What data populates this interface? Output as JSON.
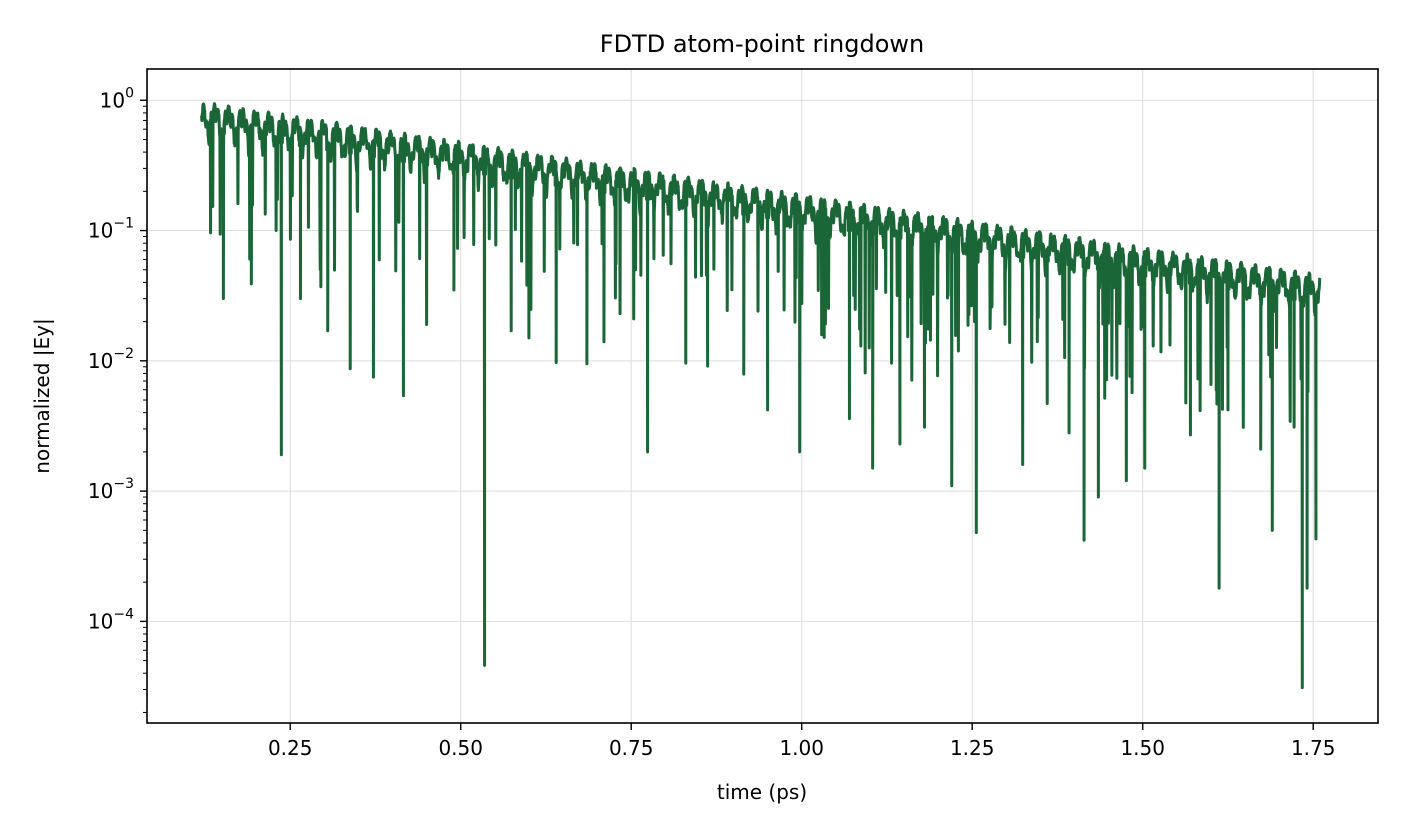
{
  "chart_data": {
    "type": "line",
    "title": "FDTD atom-point ringdown",
    "xlabel": "time (ps)",
    "ylabel": "normalized |Ey|",
    "xlim": [
      0.04,
      1.845
    ],
    "ylim_log10": [
      -4.78,
      0.24
    ],
    "yscale": "log",
    "grid": true,
    "x_ticks": [
      0.25,
      0.5,
      0.75,
      1.0,
      1.25,
      1.5,
      1.75
    ],
    "x_tick_labels": [
      "0.25",
      "0.50",
      "0.75",
      "1.00",
      "1.25",
      "1.50",
      "1.75"
    ],
    "y_ticks": [
      {
        "exp": 0,
        "base": "10",
        "sup": "0"
      },
      {
        "exp": -1,
        "base": "10",
        "sup": "−1"
      },
      {
        "exp": -2,
        "base": "10",
        "sup": "−2"
      },
      {
        "exp": -3,
        "base": "10",
        "sup": "−3"
      },
      {
        "exp": -4,
        "base": "10",
        "sup": "−4"
      }
    ],
    "line_color": "#1a6637",
    "series": [
      {
        "x_range": [
          0.12,
          1.76
        ],
        "envelope_start": 0.98,
        "envelope_end": 0.046,
        "deep_dips": [
          [
            0.152,
            0.03
          ],
          [
            0.193,
            0.039
          ],
          [
            0.237,
            0.0019
          ],
          [
            0.265,
            0.03
          ],
          [
            0.305,
            0.017
          ],
          [
            0.338,
            0.0087
          ],
          [
            0.372,
            0.0075
          ],
          [
            0.416,
            0.0054
          ],
          [
            0.45,
            0.019
          ],
          [
            0.49,
            0.035
          ],
          [
            0.535,
            4.6e-05
          ],
          [
            0.574,
            0.017
          ],
          [
            0.6,
            0.015
          ],
          [
            0.64,
            0.0097
          ],
          [
            0.685,
            0.0095
          ],
          [
            0.71,
            0.014
          ],
          [
            0.774,
            0.002
          ],
          [
            0.83,
            0.0096
          ],
          [
            0.862,
            0.0091
          ],
          [
            0.915,
            0.0079
          ],
          [
            0.95,
            0.0042
          ],
          [
            0.997,
            0.002
          ],
          [
            1.07,
            0.0036
          ],
          [
            1.104,
            0.0015
          ],
          [
            1.144,
            0.0023
          ],
          [
            1.18,
            0.0031
          ],
          [
            1.22,
            0.0011
          ],
          [
            1.256,
            0.00048
          ],
          [
            1.324,
            0.0016
          ],
          [
            1.36,
            0.0047
          ],
          [
            1.392,
            0.0028
          ],
          [
            1.414,
            0.00042
          ],
          [
            1.435,
            0.0009
          ],
          [
            1.476,
            0.0012
          ],
          [
            1.503,
            0.0015
          ],
          [
            1.57,
            0.0027
          ],
          [
            1.612,
            0.00018
          ],
          [
            1.625,
            0.0042
          ],
          [
            1.673,
            0.0021
          ],
          [
            1.69,
            0.0005
          ],
          [
            1.722,
            0.0031
          ],
          [
            1.734,
            3.1e-05
          ],
          [
            1.741,
            0.00018
          ],
          [
            1.754,
            0.00043
          ]
        ]
      }
    ]
  }
}
